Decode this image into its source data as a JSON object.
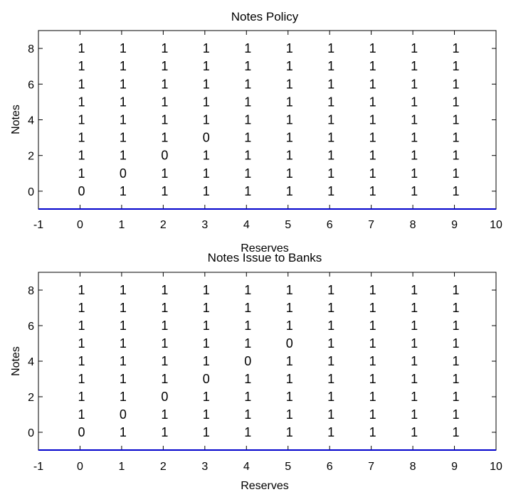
{
  "chart_data": [
    {
      "type": "table",
      "title": "Notes Policy",
      "xlabel": "Reserves",
      "ylabel": "Notes",
      "xlim": [
        -1,
        10
      ],
      "ylim": [
        -1,
        9
      ],
      "xticks": [
        "-1",
        "0",
        "1",
        "2",
        "3",
        "4",
        "5",
        "6",
        "7",
        "8",
        "9",
        "10"
      ],
      "yticks": [
        "0",
        "2",
        "4",
        "6",
        "8"
      ],
      "x": [
        0,
        1,
        2,
        3,
        4,
        5,
        6,
        7,
        8,
        9
      ],
      "y": [
        0,
        1,
        2,
        3,
        4,
        5,
        6,
        7,
        8
      ],
      "values": [
        [
          0,
          1,
          1,
          1,
          1,
          1,
          1,
          1,
          1,
          1
        ],
        [
          1,
          0,
          1,
          1,
          1,
          1,
          1,
          1,
          1,
          1
        ],
        [
          1,
          1,
          0,
          1,
          1,
          1,
          1,
          1,
          1,
          1
        ],
        [
          1,
          1,
          1,
          0,
          1,
          1,
          1,
          1,
          1,
          1
        ],
        [
          1,
          1,
          1,
          1,
          1,
          1,
          1,
          1,
          1,
          1
        ],
        [
          1,
          1,
          1,
          1,
          1,
          1,
          1,
          1,
          1,
          1
        ],
        [
          1,
          1,
          1,
          1,
          1,
          1,
          1,
          1,
          1,
          1
        ],
        [
          1,
          1,
          1,
          1,
          1,
          1,
          1,
          1,
          1,
          1
        ],
        [
          1,
          1,
          1,
          1,
          1,
          1,
          1,
          1,
          1,
          1
        ]
      ],
      "baseline_color": "#0000cc",
      "grid": false
    },
    {
      "type": "table",
      "title": "Notes Issue to Banks",
      "xlabel": "Reserves",
      "ylabel": "Notes",
      "xlim": [
        -1,
        10
      ],
      "ylim": [
        -1,
        9
      ],
      "xticks": [
        "-1",
        "0",
        "1",
        "2",
        "3",
        "4",
        "5",
        "6",
        "7",
        "8",
        "9",
        "10"
      ],
      "yticks": [
        "0",
        "2",
        "4",
        "6",
        "8"
      ],
      "x": [
        0,
        1,
        2,
        3,
        4,
        5,
        6,
        7,
        8,
        9
      ],
      "y": [
        0,
        1,
        2,
        3,
        4,
        5,
        6,
        7,
        8
      ],
      "values": [
        [
          0,
          1,
          1,
          1,
          1,
          1,
          1,
          1,
          1,
          1
        ],
        [
          1,
          0,
          1,
          1,
          1,
          1,
          1,
          1,
          1,
          1
        ],
        [
          1,
          1,
          0,
          1,
          1,
          1,
          1,
          1,
          1,
          1
        ],
        [
          1,
          1,
          1,
          0,
          1,
          1,
          1,
          1,
          1,
          1
        ],
        [
          1,
          1,
          1,
          1,
          0,
          1,
          1,
          1,
          1,
          1
        ],
        [
          1,
          1,
          1,
          1,
          1,
          0,
          1,
          1,
          1,
          1
        ],
        [
          1,
          1,
          1,
          1,
          1,
          1,
          1,
          1,
          1,
          1
        ],
        [
          1,
          1,
          1,
          1,
          1,
          1,
          1,
          1,
          1,
          1
        ],
        [
          1,
          1,
          1,
          1,
          1,
          1,
          1,
          1,
          1,
          1
        ]
      ],
      "baseline_color": "#0000cc",
      "grid": false
    }
  ]
}
